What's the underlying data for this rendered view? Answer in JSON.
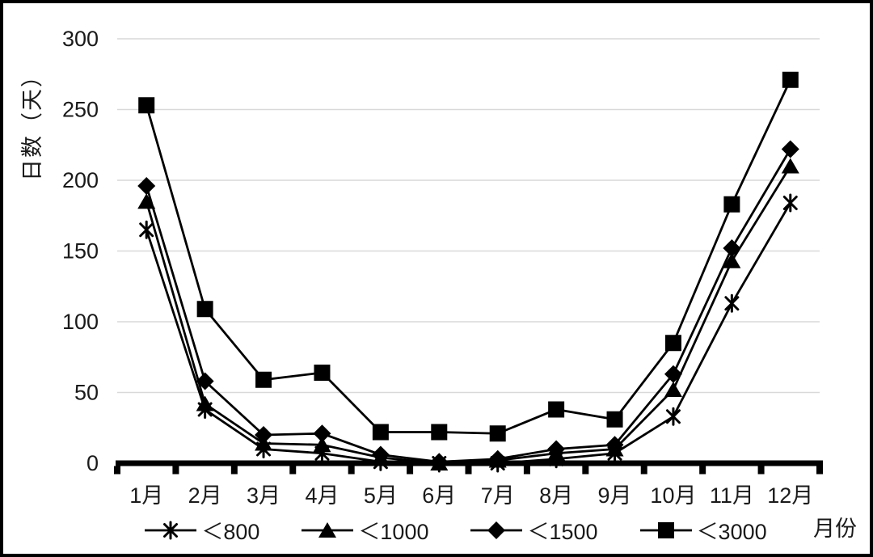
{
  "frame": {
    "background_color": "#ffffff",
    "border_color": "#000000"
  },
  "chart_data": {
    "type": "line",
    "title": "",
    "ylabel": "日数（天）",
    "xlabel": "月份",
    "categories": [
      "1月",
      "2月",
      "3月",
      "4月",
      "5月",
      "6月",
      "7月",
      "8月",
      "9月",
      "10月",
      "11月",
      "12月"
    ],
    "y_ticks": [
      0,
      50,
      100,
      150,
      200,
      250,
      300
    ],
    "ylim": [
      0,
      300
    ],
    "grid": true,
    "legend_position": "bottom",
    "line_color": "#000000",
    "gridline_color": "#d9d9d9",
    "axis_color": "#000000",
    "series": [
      {
        "name": "＜800",
        "marker": "asterisk",
        "values": [
          165,
          38,
          10,
          7,
          1,
          0,
          0,
          3,
          7,
          33,
          113,
          184
        ]
      },
      {
        "name": "＜1000",
        "marker": "triangle",
        "values": [
          185,
          42,
          14,
          13,
          4,
          0,
          2,
          7,
          10,
          52,
          143,
          210
        ]
      },
      {
        "name": "＜1500",
        "marker": "diamond",
        "values": [
          196,
          58,
          20,
          21,
          6,
          1,
          3,
          10,
          13,
          63,
          152,
          222
        ]
      },
      {
        "name": "＜3000",
        "marker": "square",
        "values": [
          253,
          109,
          59,
          64,
          22,
          22,
          21,
          38,
          31,
          85,
          183,
          271
        ]
      }
    ]
  }
}
